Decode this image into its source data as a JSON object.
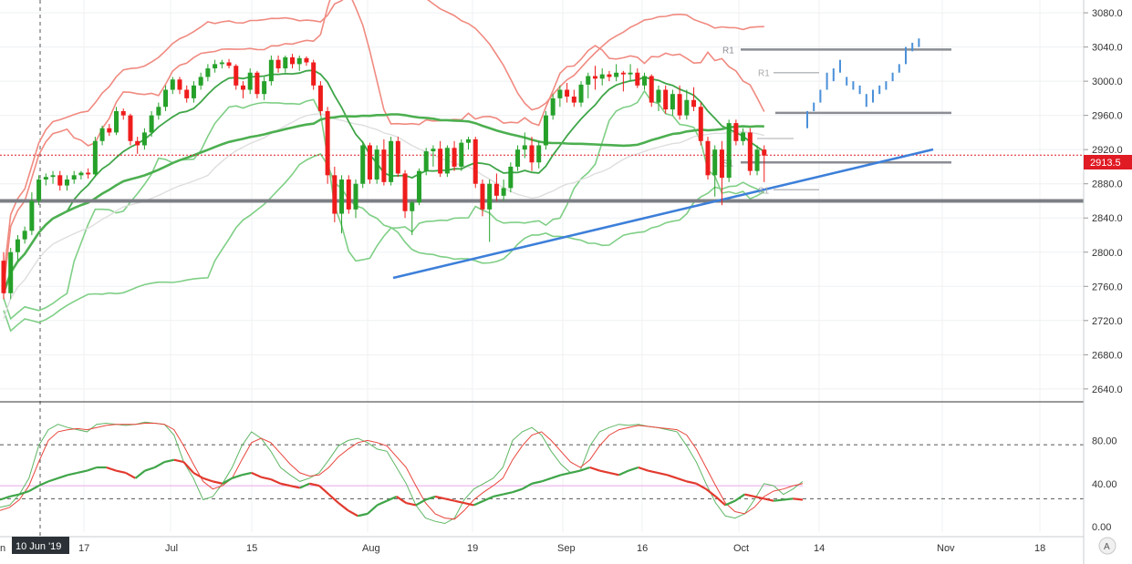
{
  "chart_data": {
    "type": "candlestick",
    "y_axis": {
      "ticks": [
        "3080.0",
        "3040.0",
        "3000.0",
        "2960.0",
        "2920.0",
        "2880.0",
        "2840.0",
        "2800.0",
        "2760.0",
        "2720.0",
        "2680.0",
        "2640.0"
      ],
      "ylim": [
        2626,
        3095
      ]
    },
    "oscillator_axis": {
      "ticks": [
        "80.00",
        "40.00",
        "0.00"
      ],
      "ylim": [
        -5,
        115
      ],
      "dashed_levels": [
        76,
        26
      ],
      "pink_level": 38
    },
    "x_axis": {
      "tick_labels": [
        "17",
        "Jul",
        "15",
        "Aug",
        "19",
        "Sep",
        "16",
        "Oct",
        "14",
        "Nov",
        "18"
      ],
      "crosshair_label": "10 Jun '19",
      "edge_label": "n"
    },
    "last_price": "2913.5",
    "corner_badge": "A",
    "level_labels": [
      "R1",
      "R1",
      "S1",
      "S1"
    ],
    "horizontal_levels": [
      3037,
      3010,
      2963,
      2933,
      2905,
      2873,
      2860
    ],
    "trendline": {
      "from": [
        "Aug 5",
        2775
      ],
      "to": [
        "Oct 18",
        2928
      ]
    },
    "candles": [
      [
        2790,
        2800,
        2745,
        2752
      ],
      [
        2752,
        2805,
        2745,
        2800
      ],
      [
        2800,
        2820,
        2790,
        2815
      ],
      [
        2815,
        2830,
        2810,
        2825
      ],
      [
        2825,
        2870,
        2820,
        2860
      ],
      [
        2860,
        2890,
        2855,
        2885
      ],
      [
        2885,
        2892,
        2878,
        2888
      ],
      [
        2888,
        2895,
        2880,
        2890
      ],
      [
        2890,
        2895,
        2872,
        2878
      ],
      [
        2878,
        2890,
        2872,
        2885
      ],
      [
        2885,
        2895,
        2880,
        2890
      ],
      [
        2890,
        2895,
        2885,
        2893
      ],
      [
        2893,
        2898,
        2886,
        2891
      ],
      [
        2891,
        2935,
        2888,
        2930
      ],
      [
        2930,
        2948,
        2925,
        2945
      ],
      [
        2945,
        2950,
        2936,
        2940
      ],
      [
        2940,
        2970,
        2937,
        2965
      ],
      [
        2965,
        2968,
        2955,
        2960
      ],
      [
        2960,
        2962,
        2925,
        2930
      ],
      [
        2930,
        2935,
        2915,
        2925
      ],
      [
        2925,
        2945,
        2920,
        2940
      ],
      [
        2940,
        2965,
        2935,
        2960
      ],
      [
        2960,
        2975,
        2955,
        2970
      ],
      [
        2970,
        2995,
        2965,
        2990
      ],
      [
        2990,
        3005,
        2985,
        3002
      ],
      [
        3002,
        3005,
        2985,
        2990
      ],
      [
        2990,
        2995,
        2975,
        2980
      ],
      [
        2980,
        3000,
        2975,
        2995
      ],
      [
        2995,
        3010,
        2990,
        3005
      ],
      [
        3005,
        3020,
        3000,
        3015
      ],
      [
        3015,
        3025,
        3010,
        3020
      ],
      [
        3020,
        3025,
        3015,
        3022
      ],
      [
        3022,
        3026,
        3015,
        3018
      ],
      [
        3018,
        3020,
        2990,
        2995
      ],
      [
        2995,
        3000,
        2980,
        2990
      ],
      [
        2990,
        3015,
        2985,
        3010
      ],
      [
        3010,
        3012,
        2980,
        2985
      ],
      [
        2985,
        3005,
        2978,
        3000
      ],
      [
        3000,
        3030,
        2995,
        3025
      ],
      [
        3025,
        3030,
        3010,
        3015
      ],
      [
        3015,
        3030,
        3010,
        3028
      ],
      [
        3028,
        3032,
        3015,
        3020
      ],
      [
        3020,
        3030,
        3012,
        3027
      ],
      [
        3027,
        3029,
        3018,
        3022
      ],
      [
        3022,
        3025,
        2990,
        2995
      ],
      [
        2995,
        3000,
        2960,
        2965
      ],
      [
        2965,
        2970,
        2880,
        2890
      ],
      [
        2890,
        2900,
        2835,
        2845
      ],
      [
        2845,
        2890,
        2822,
        2885
      ],
      [
        2885,
        2890,
        2845,
        2850
      ],
      [
        2850,
        2885,
        2840,
        2880
      ],
      [
        2880,
        2930,
        2875,
        2925
      ],
      [
        2925,
        2928,
        2880,
        2885
      ],
      [
        2885,
        2925,
        2880,
        2920
      ],
      [
        2920,
        2932,
        2878,
        2882
      ],
      [
        2882,
        2935,
        2878,
        2930
      ],
      [
        2930,
        2935,
        2888,
        2892
      ],
      [
        2892,
        2896,
        2840,
        2848
      ],
      [
        2848,
        2860,
        2820,
        2858
      ],
      [
        2858,
        2898,
        2855,
        2895
      ],
      [
        2895,
        2922,
        2890,
        2918
      ],
      [
        2918,
        2925,
        2900,
        2921
      ],
      [
        2921,
        2930,
        2888,
        2892
      ],
      [
        2892,
        2925,
        2888,
        2922
      ],
      [
        2922,
        2930,
        2895,
        2900
      ],
      [
        2900,
        2932,
        2895,
        2928
      ],
      [
        2928,
        2935,
        2920,
        2932
      ],
      [
        2932,
        2935,
        2875,
        2880
      ],
      [
        2880,
        2885,
        2842,
        2850
      ],
      [
        2850,
        2885,
        2812,
        2880
      ],
      [
        2880,
        2892,
        2860,
        2866
      ],
      [
        2866,
        2885,
        2860,
        2875
      ],
      [
        2875,
        2905,
        2870,
        2900
      ],
      [
        2900,
        2925,
        2895,
        2920
      ],
      [
        2920,
        2940,
        2910,
        2925
      ],
      [
        2925,
        2935,
        2895,
        2905
      ],
      [
        2905,
        2930,
        2898,
        2925
      ],
      [
        2925,
        2965,
        2920,
        2960
      ],
      [
        2960,
        2985,
        2955,
        2980
      ],
      [
        2980,
        2995,
        2970,
        2990
      ],
      [
        2990,
        2998,
        2975,
        2982
      ],
      [
        2982,
        2990,
        2970,
        2975
      ],
      [
        2975,
        3000,
        2970,
        2996
      ],
      [
        2996,
        3010,
        2980,
        3006
      ],
      [
        3006,
        3018,
        2990,
        3003
      ],
      [
        3003,
        3015,
        2995,
        3008
      ],
      [
        3008,
        3012,
        3000,
        3005
      ],
      [
        3005,
        3020,
        3000,
        3010
      ],
      [
        3010,
        3012,
        2988,
        3008
      ],
      [
        3008,
        3020,
        3000,
        3010
      ],
      [
        3010,
        3015,
        2992,
        2995
      ],
      [
        2995,
        3010,
        2990,
        3006
      ],
      [
        3006,
        3008,
        2970,
        2975
      ],
      [
        2975,
        2995,
        2965,
        2990
      ],
      [
        2990,
        2995,
        2962,
        2967
      ],
      [
        2967,
        2990,
        2960,
        2985
      ],
      [
        2985,
        2995,
        2955,
        2960
      ],
      [
        2960,
        2990,
        2955,
        2978
      ],
      [
        2978,
        2993,
        2965,
        2970
      ],
      [
        2970,
        2975,
        2925,
        2930
      ],
      [
        2930,
        2935,
        2885,
        2890
      ],
      [
        2890,
        2925,
        2865,
        2920
      ],
      [
        2920,
        2930,
        2855,
        2887
      ],
      [
        2887,
        2955,
        2882,
        2951
      ],
      [
        2951,
        2955,
        2925,
        2930
      ],
      [
        2930,
        2945,
        2925,
        2940
      ],
      [
        2940,
        2945,
        2890,
        2895
      ],
      [
        2895,
        2925,
        2890,
        2920
      ],
      [
        2920,
        2925,
        2882,
        2913
      ]
    ],
    "projection_ticks": [
      [
        2945,
        2965
      ],
      [
        2965,
        2975
      ],
      [
        2975,
        2990
      ],
      [
        2990,
        3010
      ],
      [
        3000,
        3015
      ],
      [
        3010,
        3025
      ],
      [
        2995,
        3005
      ],
      [
        2990,
        3000
      ],
      [
        2985,
        2995
      ],
      [
        2970,
        2985
      ],
      [
        2975,
        2990
      ],
      [
        2985,
        2995
      ],
      [
        2990,
        3000
      ],
      [
        3000,
        3010
      ],
      [
        3010,
        3020
      ],
      [
        3020,
        3040
      ],
      [
        3035,
        3045
      ],
      [
        3040,
        3050
      ]
    ],
    "oscillator": {
      "stoch_k": [
        18,
        20,
        30,
        45,
        75,
        90,
        95,
        92,
        90,
        88,
        95,
        96,
        95,
        94,
        95,
        97,
        96,
        95,
        85,
        60,
        45,
        25,
        28,
        40,
        55,
        75,
        88,
        82,
        70,
        55,
        48,
        42,
        45,
        50,
        62,
        75,
        80,
        82,
        78,
        72,
        70,
        55,
        40,
        20,
        8,
        5,
        3,
        8,
        25,
        35,
        40,
        45,
        55,
        80,
        88,
        92,
        85,
        70,
        58,
        50,
        52,
        75,
        88,
        92,
        95,
        94,
        95,
        93,
        92,
        90,
        88,
        75,
        60,
        40,
        22,
        10,
        8,
        12,
        25,
        40,
        38,
        30,
        35,
        42
      ],
      "stoch_d": [
        15,
        18,
        25,
        38,
        60,
        80,
        88,
        90,
        91,
        90,
        92,
        94,
        95,
        95,
        95,
        96,
        96,
        95,
        90,
        75,
        58,
        42,
        35,
        38,
        45,
        62,
        78,
        82,
        78,
        68,
        58,
        50,
        47,
        48,
        55,
        65,
        72,
        78,
        80,
        78,
        75,
        65,
        55,
        38,
        22,
        12,
        8,
        7,
        15,
        25,
        32,
        38,
        45,
        62,
        75,
        85,
        88,
        80,
        70,
        60,
        55,
        62,
        75,
        85,
        90,
        92,
        94,
        93,
        92,
        91,
        90,
        85,
        72,
        55,
        38,
        22,
        14,
        12,
        18,
        28,
        33,
        35,
        38,
        40
      ],
      "rsi": [
        25,
        28,
        30,
        33,
        38,
        42,
        45,
        48,
        50,
        52,
        55,
        55,
        52,
        50,
        45,
        52,
        55,
        60,
        62,
        60,
        50,
        45,
        42,
        40,
        45,
        48,
        50,
        46,
        44,
        40,
        38,
        36,
        40,
        38,
        30,
        22,
        15,
        10,
        12,
        20,
        24,
        28,
        22,
        20,
        25,
        28,
        26,
        24,
        22,
        20,
        24,
        28,
        30,
        32,
        35,
        40,
        42,
        45,
        48,
        50,
        52,
        55,
        52,
        50,
        48,
        52,
        55,
        52,
        50,
        48,
        45,
        42,
        40,
        35,
        28,
        20,
        24,
        30,
        28,
        26,
        24,
        25,
        26,
        25
      ]
    }
  }
}
